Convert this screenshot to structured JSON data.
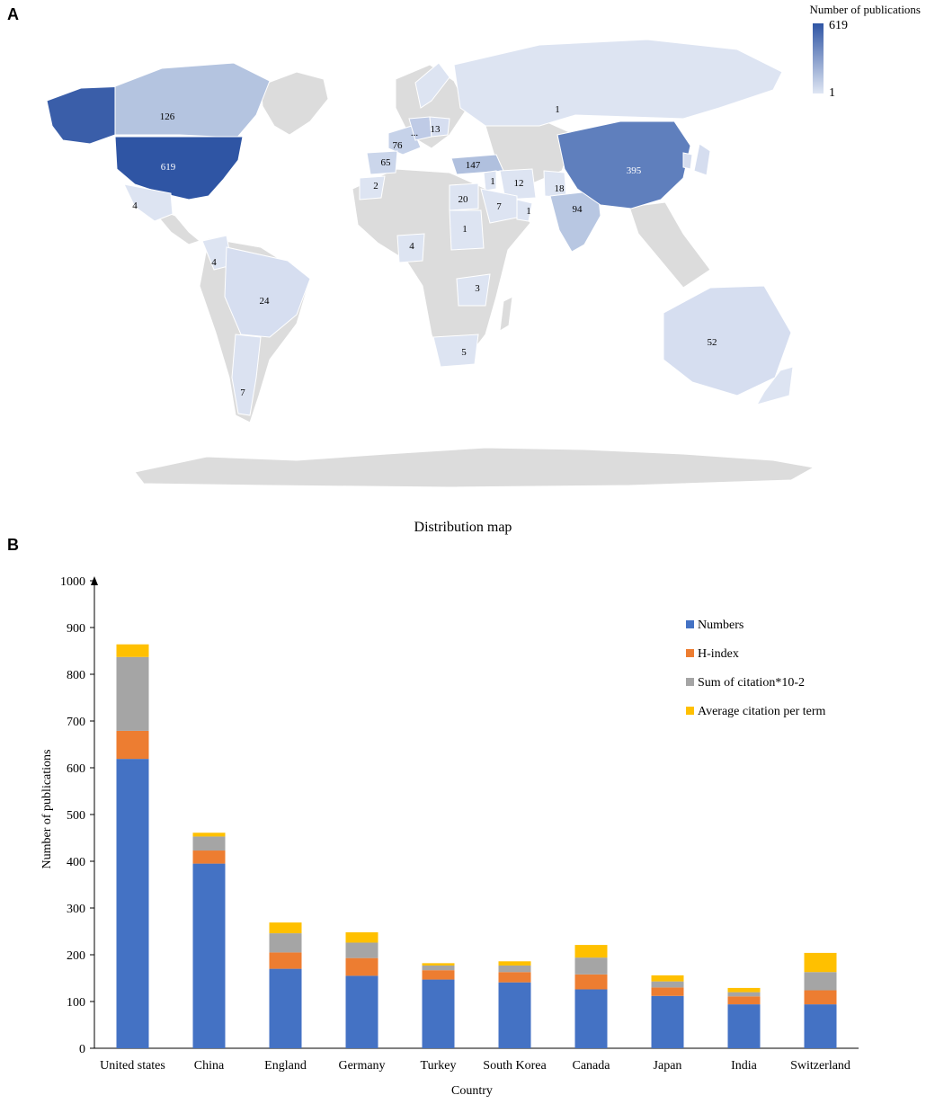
{
  "panels": {
    "a": "A",
    "b": "B"
  },
  "map": {
    "title": "Distribution map",
    "legend": {
      "title": "Number of publications",
      "max": "619",
      "min": "1",
      "color_high": "#2f55a4",
      "color_low": "#dfe6f3"
    },
    "labels": [
      {
        "country": "United states",
        "value": "619"
      },
      {
        "country": "China",
        "value": "395"
      },
      {
        "country": "Turkey",
        "value": "147"
      },
      {
        "country": "Canada",
        "value": "126"
      },
      {
        "country": "India",
        "value": "94"
      },
      {
        "country": "France",
        "value": "76"
      },
      {
        "country": "Spain",
        "value": "65"
      },
      {
        "country": "Australia",
        "value": "52"
      },
      {
        "country": "Brazil",
        "value": "24"
      },
      {
        "country": "Egypt",
        "value": "20"
      },
      {
        "country": "Pakistan",
        "value": "18"
      },
      {
        "country": "Poland",
        "value": "13"
      },
      {
        "country": "Iran",
        "value": "12"
      },
      {
        "country": "Saudi Arabia",
        "value": "7"
      },
      {
        "country": "Argentina",
        "value": "7"
      },
      {
        "country": "South Africa",
        "value": "5"
      },
      {
        "country": "Mexico",
        "value": "4"
      },
      {
        "country": "Colombia",
        "value": "4"
      },
      {
        "country": "Congo",
        "value": "4"
      },
      {
        "country": "Russia",
        "value": "3"
      },
      {
        "country": "Zambia",
        "value": "2"
      },
      {
        "country": "Morocco",
        "value": "1"
      },
      {
        "country": "Sudan",
        "value": "1"
      },
      {
        "country": "Jordan",
        "value": "1"
      },
      {
        "country": "Oman",
        "value": "1"
      },
      {
        "country": "Germany",
        "value": "..."
      }
    ]
  },
  "chart_data": {
    "type": "bar",
    "stacked": true,
    "categories": [
      "United states",
      "China",
      "England",
      "Germany",
      "Turkey",
      "South Korea",
      "Canada",
      "Japan",
      "India",
      "Switzerland"
    ],
    "series": [
      {
        "name": "Numbers",
        "color": "#4472c4",
        "values": [
          619,
          395,
          170,
          155,
          147,
          141,
          126,
          112,
          94,
          94
        ]
      },
      {
        "name": "H-index",
        "color": "#ed7d31",
        "values": [
          60,
          28,
          35,
          38,
          20,
          22,
          32,
          18,
          17,
          30
        ]
      },
      {
        "name": "Sum of citation*10-2",
        "color": "#a5a5a5",
        "values": [
          158,
          30,
          41,
          33,
          10,
          14,
          36,
          13,
          9,
          39
        ]
      },
      {
        "name": "Average citation per term",
        "color": "#ffc000",
        "values": [
          27,
          8,
          23,
          22,
          5,
          9,
          27,
          13,
          9,
          41
        ]
      }
    ],
    "xlabel": "Country",
    "ylabel": "Number of publications",
    "ylim": [
      0,
      1000
    ],
    "yticks": [
      "0",
      "100",
      "200",
      "300",
      "400",
      "500",
      "600",
      "700",
      "800",
      "900",
      "1000"
    ],
    "grid": false,
    "legend_position": "top-right"
  }
}
